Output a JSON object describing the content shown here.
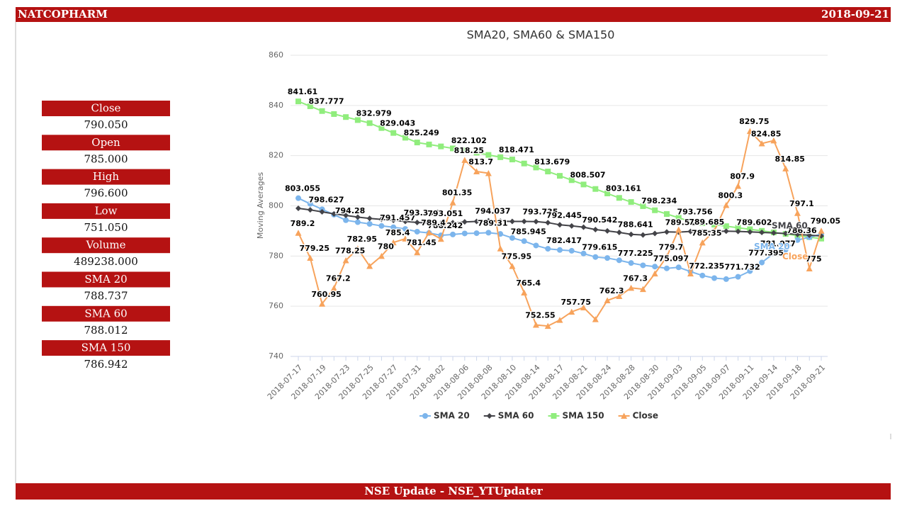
{
  "header": {
    "symbol": "NATCOPHARM",
    "date": "2018-09-21"
  },
  "panel": [
    {
      "label": "Close",
      "value": "790.050"
    },
    {
      "label": "Open",
      "value": "785.000"
    },
    {
      "label": "High",
      "value": "796.600"
    },
    {
      "label": "Low",
      "value": "751.050"
    },
    {
      "label": "Volume",
      "value": "489238.000"
    },
    {
      "label": "SMA 20",
      "value": "788.737"
    },
    {
      "label": "SMA 60",
      "value": "788.012"
    },
    {
      "label": "SMA 150",
      "value": "786.942"
    }
  ],
  "footer": "NSE Update - NSE_YTUpdater",
  "chart_data": {
    "type": "line",
    "title": "SMA20, SMA60 & SMA150",
    "y_label": "Moving Averages",
    "categories": [
      "2018-07-17",
      null,
      "2018-07-19",
      null,
      "2018-07-23",
      null,
      "2018-07-25",
      null,
      "2018-07-27",
      null,
      "2018-07-31",
      null,
      "2018-08-02",
      null,
      "2018-08-06",
      null,
      "2018-08-08",
      null,
      "2018-08-10",
      null,
      "2018-08-14",
      null,
      "2018-08-17",
      null,
      "2018-08-21",
      null,
      "2018-08-24",
      null,
      "2018-08-28",
      null,
      "2018-08-30",
      null,
      "2018-09-03",
      null,
      "2018-09-05",
      null,
      "2018-09-07",
      null,
      "2018-09-11",
      null,
      "2018-09-14",
      null,
      "2018-09-18",
      null,
      "2018-09-21"
    ],
    "ylim": [
      740,
      860
    ],
    "yticks": [
      740,
      760,
      780,
      800,
      820,
      840,
      860
    ],
    "grid": true,
    "legend": "bottom",
    "series": [
      {
        "name": "SMA 20",
        "color": "#7cb5ec",
        "marker": "circle",
        "end_label": true,
        "values": [
          803.055,
          800.8,
          798.627,
          796.5,
          794.28,
          793.5,
          792.8,
          792,
          791.457,
          790.8,
          789.7,
          789.2,
          788.242,
          788.6,
          789,
          789.1,
          789.31,
          788.8,
          787.2,
          785.945,
          784.2,
          782.9,
          782.417,
          782.1,
          781,
          779.615,
          779.2,
          778.3,
          777.225,
          776.3,
          775.8,
          775.097,
          775.5,
          773.8,
          772.235,
          771.2,
          770.8,
          771.732,
          774,
          777.395,
          781.077,
          782.5,
          786.36,
          787.5,
          788.737
        ],
        "value_labels": [
          "803.055",
          null,
          "798.627",
          null,
          "794.28",
          null,
          null,
          null,
          "791.457",
          null,
          null,
          null,
          "788.242",
          null,
          null,
          null,
          "789.31",
          null,
          null,
          "785.945",
          null,
          null,
          "782.417",
          null,
          null,
          "779.615",
          null,
          null,
          "777.225",
          null,
          null,
          "775.097",
          null,
          null,
          "772.235",
          null,
          null,
          "771.732",
          null,
          "777.395",
          "781.077",
          null,
          "786.36",
          null,
          null
        ]
      },
      {
        "name": "SMA 60",
        "color": "#434348",
        "marker": "diamond",
        "end_label": true,
        "values": [
          799,
          798.4,
          797.6,
          796.8,
          796.2,
          795.5,
          795,
          794.6,
          794.2,
          793.8,
          793.356,
          793.2,
          793.051,
          793.3,
          793.6,
          793.8,
          794.037,
          793.9,
          793.8,
          793.8,
          793.735,
          793.3,
          792.445,
          792,
          791.5,
          790.542,
          790,
          789.4,
          788.641,
          788.4,
          789,
          789.6,
          789.516,
          789.8,
          789.685,
          789.8,
          789.9,
          789.8,
          789.602,
          789.4,
          789.2,
          789,
          788.6,
          788.3,
          788.012
        ],
        "value_labels": [
          null,
          null,
          null,
          null,
          null,
          null,
          null,
          null,
          null,
          null,
          "793.356",
          null,
          "793.051",
          null,
          null,
          null,
          "794.037",
          null,
          null,
          null,
          "793.735",
          null,
          "792.445",
          null,
          null,
          "790.542",
          null,
          null,
          "788.641",
          null,
          null,
          null,
          "789.516",
          null,
          "789.685",
          null,
          null,
          null,
          "789.602",
          null,
          null,
          null,
          null,
          null,
          null
        ]
      },
      {
        "name": "SMA 150",
        "color": "#90ed7d",
        "marker": "square",
        "end_label": false,
        "values": [
          841.61,
          839.69,
          837.777,
          836.58,
          835.38,
          834.18,
          832.979,
          831.01,
          829.043,
          827.15,
          825.249,
          824.46,
          823.68,
          822.89,
          822.102,
          821.19,
          820.29,
          819.38,
          818.471,
          816.87,
          815.28,
          813.679,
          811.96,
          810.23,
          808.507,
          806.72,
          804.94,
          803.161,
          801.52,
          799.88,
          798.234,
          796.74,
          795.25,
          793.756,
          793.14,
          792.52,
          791.9,
          791.28,
          790.66,
          790.04,
          789.42,
          788.8,
          788.18,
          787.56,
          786.942
        ],
        "value_labels": [
          "841.61",
          null,
          "837.777",
          null,
          null,
          null,
          "832.979",
          null,
          "829.043",
          null,
          "825.249",
          null,
          null,
          null,
          "822.102",
          null,
          null,
          null,
          "818.471",
          null,
          null,
          "813.679",
          null,
          null,
          "808.507",
          null,
          null,
          "803.161",
          null,
          null,
          "798.234",
          null,
          null,
          "793.756",
          null,
          null,
          null,
          null,
          null,
          null,
          null,
          null,
          null,
          null,
          null
        ]
      },
      {
        "name": "Close",
        "color": "#f7a35c",
        "marker": "triangle",
        "end_label": true,
        "values": [
          789.2,
          779.25,
          760.95,
          767.2,
          778.25,
          782.95,
          776,
          780,
          785.4,
          786.9,
          781.45,
          789.4,
          786.8,
          801.35,
          818.25,
          813.7,
          813,
          783,
          775.95,
          765.4,
          752.55,
          752.1,
          754.5,
          757.75,
          759.5,
          754.8,
          762.3,
          764,
          767.3,
          766.8,
          773,
          779.7,
          790.5,
          773,
          785.35,
          790,
          800.3,
          807.9,
          829.75,
          824.85,
          826,
          814.85,
          797.1,
          775,
          790.05
        ],
        "value_labels": [
          "789.2",
          "779.25",
          "760.95",
          "767.2",
          "778.25",
          "782.95",
          null,
          "780",
          "785.4",
          null,
          "781.45",
          "789.4",
          null,
          "801.35",
          "818.25",
          "813.7",
          null,
          null,
          "775.95",
          "765.4",
          "752.55",
          null,
          null,
          "757.75",
          null,
          null,
          "762.3",
          null,
          "767.3",
          null,
          null,
          "779.7",
          null,
          null,
          "785.35",
          null,
          "800.3",
          "807.9",
          "829.75",
          "824.85",
          null,
          "814.85",
          "797.1",
          "775",
          "790.05"
        ]
      }
    ]
  }
}
